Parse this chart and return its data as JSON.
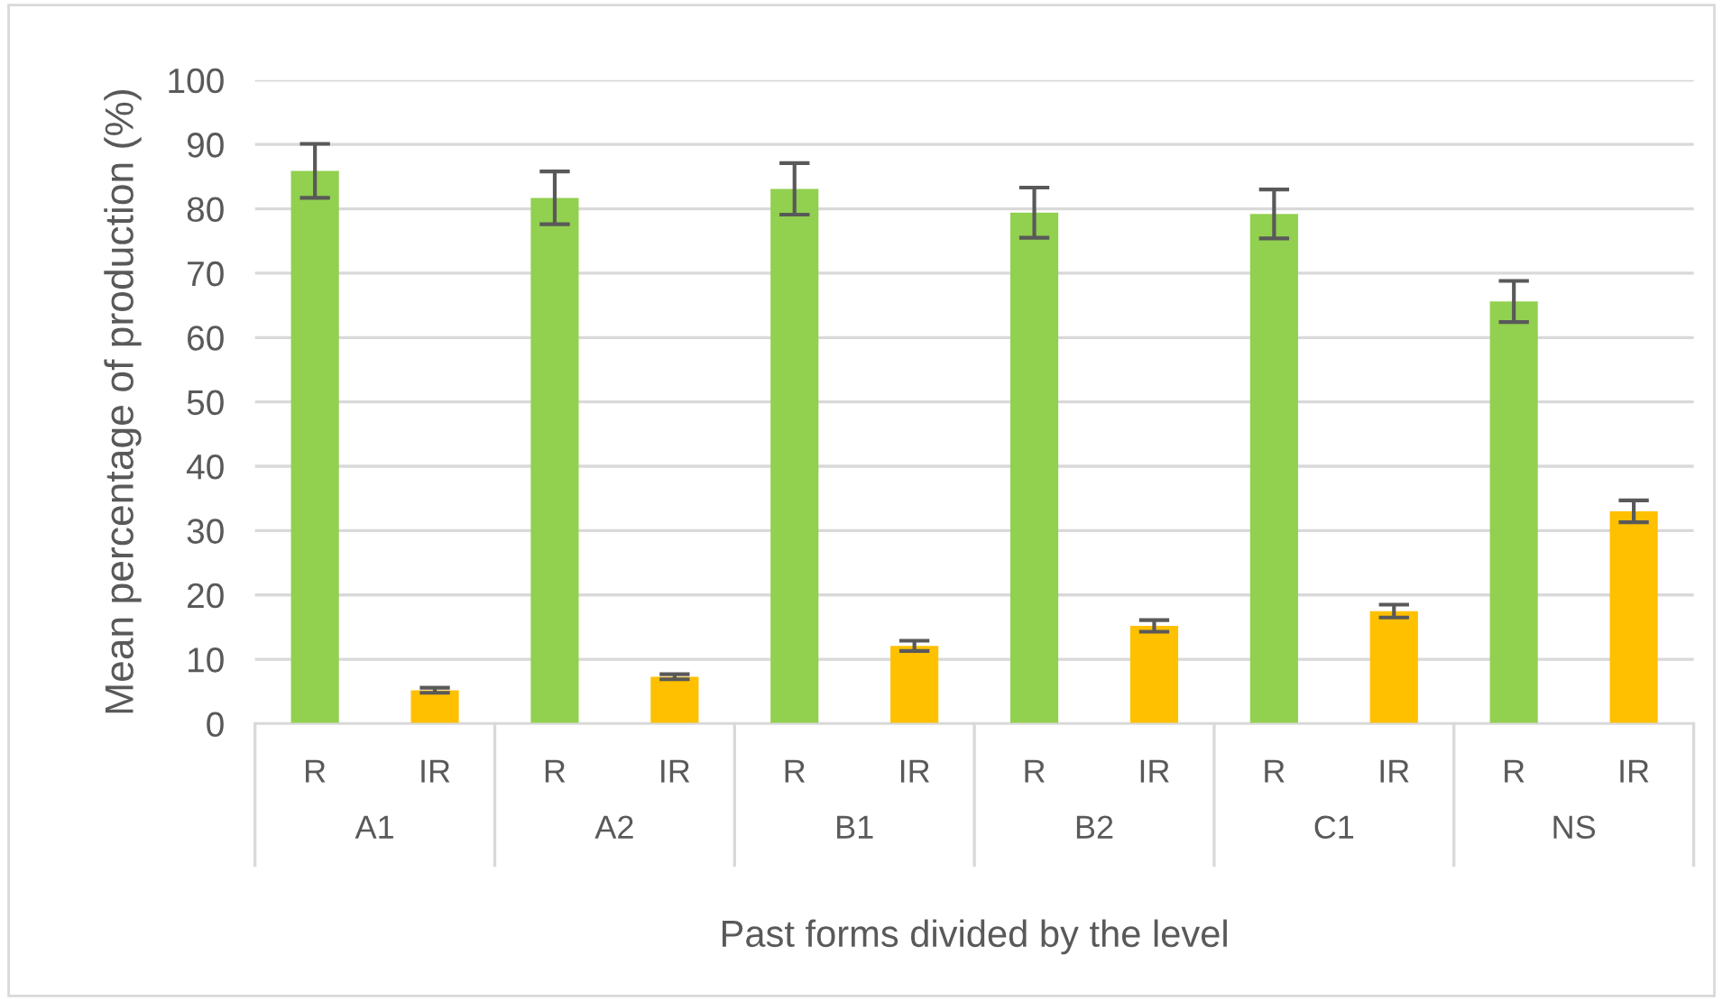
{
  "chart_data": {
    "type": "bar",
    "xlabel": "Past forms divided by the level",
    "ylabel": "Mean percentage of production (%)",
    "categories": [
      "R",
      "IR",
      "R",
      "IR",
      "R",
      "IR",
      "R",
      "IR",
      "R",
      "IR",
      "R",
      "IR"
    ],
    "values": [
      85.9,
      5.2,
      81.7,
      7.3,
      83.1,
      12.1,
      79.4,
      15.2,
      79.2,
      17.5,
      65.6,
      33.0
    ],
    "errors": [
      4.2,
      0.4,
      4.1,
      0.4,
      4.0,
      0.8,
      3.9,
      0.9,
      3.8,
      1.0,
      3.2,
      1.7
    ],
    "colors": [
      "#92d050",
      "#ffc000",
      "#92d050",
      "#ffc000",
      "#92d050",
      "#ffc000",
      "#92d050",
      "#ffc000",
      "#92d050",
      "#ffc000",
      "#92d050",
      "#ffc000"
    ],
    "annotations": [
      "A1",
      "A2",
      "B1",
      "B2",
      "C1",
      "NS"
    ],
    "ylim": [
      0,
      100
    ],
    "yticks": [
      0,
      10,
      20,
      30,
      40,
      50,
      60,
      70,
      80,
      90,
      100
    ],
    "grid": "y",
    "legend": false
  }
}
